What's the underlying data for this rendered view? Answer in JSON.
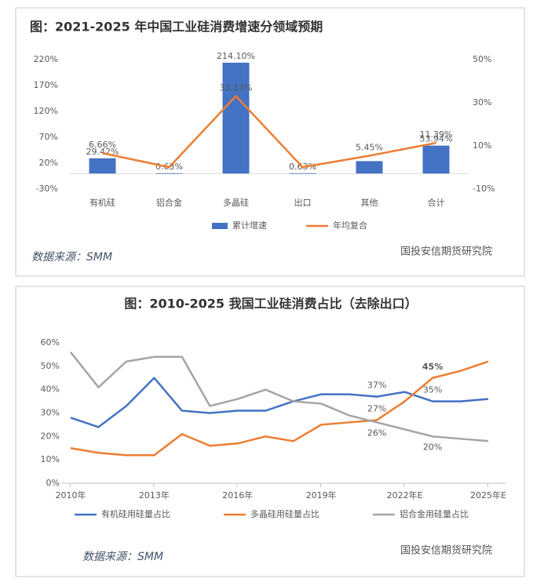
{
  "chart_data": [
    {
      "type": "combo",
      "title": "图：2021-2025 年中国工业硅消费增速分领域预期",
      "categories": [
        "有机硅",
        "铝合金",
        "多晶硅",
        "出口",
        "其他",
        "合计"
      ],
      "series": [
        {
          "name": "累计增速",
          "type": "bar",
          "axis": "y",
          "color": "#4472c4",
          "values": [
            29.42,
            0.63,
            214.1,
            0.63,
            24,
            53.94
          ],
          "value_labels": [
            "29.42%",
            "0.63%",
            "214.10%",
            "0.63%",
            null,
            "53.94%"
          ]
        },
        {
          "name": "年均复合",
          "type": "line",
          "axis": "y2",
          "color": "#ed7d31",
          "values": [
            6.66,
            0.13,
            33.13,
            0.13,
            5.45,
            11.39
          ],
          "value_labels": [
            "6.66%",
            null,
            "33.13%",
            null,
            "5.45%",
            "11.39%"
          ]
        }
      ],
      "ylim": [
        -30,
        220
      ],
      "yticks": [
        {
          "value": -30,
          "label": "-30%"
        },
        {
          "value": 20,
          "label": "20%"
        },
        {
          "value": 70,
          "label": "70%"
        },
        {
          "value": 120,
          "label": "120%"
        },
        {
          "value": 170,
          "label": "170%"
        },
        {
          "value": 220,
          "label": "220%"
        }
      ],
      "y2lim": [
        -10,
        50
      ],
      "y2ticks": [
        {
          "value": -10,
          "label": "-10%"
        },
        {
          "value": 10,
          "label": "10%"
        },
        {
          "value": 30,
          "label": "30%"
        },
        {
          "value": 50,
          "label": "50%"
        }
      ],
      "legend": "bottom",
      "grid": false,
      "source": "数据来源：SMM",
      "watermark": "国投安信期货研究院"
    },
    {
      "type": "line",
      "title": "图：2010-2025 我国工业硅消费占比（去除出口）",
      "categories": [
        "2010年",
        null,
        null,
        "2013年",
        null,
        null,
        "2016年",
        null,
        null,
        "2019年",
        null,
        null,
        "2022年E",
        null,
        null,
        "2025年E"
      ],
      "series": [
        {
          "name": "有机硅用硅量占比",
          "color": "#4472c4",
          "values": [
            28,
            24,
            33,
            45,
            31,
            30,
            31,
            31,
            35,
            38,
            38,
            37,
            39,
            35,
            35,
            36
          ],
          "value_labels": [
            null,
            null,
            null,
            null,
            null,
            null,
            null,
            null,
            null,
            null,
            null,
            "37%",
            null,
            "35%",
            null,
            null
          ]
        },
        {
          "name": "多晶硅用硅量占比",
          "color": "#ed7d31",
          "values": [
            15,
            13,
            12,
            12,
            21,
            16,
            17,
            20,
            18,
            25,
            26,
            27,
            35,
            45,
            48,
            52
          ],
          "value_labels": [
            null,
            null,
            null,
            null,
            null,
            null,
            null,
            null,
            null,
            null,
            null,
            "27%",
            null,
            "45%",
            null,
            null
          ]
        },
        {
          "name": "铝合金用硅量占比",
          "color": "#a5a5a5",
          "values": [
            56,
            41,
            52,
            54,
            54,
            33,
            36,
            40,
            35,
            34,
            29,
            26,
            23,
            20,
            19,
            18
          ],
          "value_labels": [
            null,
            null,
            null,
            null,
            null,
            null,
            null,
            null,
            null,
            null,
            null,
            "26%",
            null,
            "20%",
            null,
            null
          ]
        }
      ],
      "ylim": [
        0,
        60
      ],
      "yticks": [
        {
          "value": 0,
          "label": "0%"
        },
        {
          "value": 10,
          "label": "10%"
        },
        {
          "value": 20,
          "label": "20%"
        },
        {
          "value": 30,
          "label": "30%"
        },
        {
          "value": 40,
          "label": "40%"
        },
        {
          "value": 50,
          "label": "50%"
        },
        {
          "value": 60,
          "label": "60%"
        }
      ],
      "legend": "bottom",
      "grid": false,
      "source": "数据来源：SMM",
      "watermark": "国投安信期货研究院"
    }
  ]
}
